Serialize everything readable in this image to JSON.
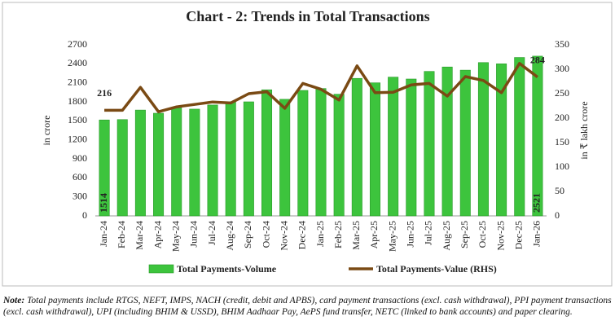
{
  "chart_data": {
    "type": "bar-line",
    "title": "Chart - 2: Trends in Total Transactions",
    "y_label": "in crore",
    "y2_label": "in ₹ lakh crore",
    "categories": [
      "Jan-24",
      "Feb-24",
      "Mar-24",
      "Apr-24",
      "May-24",
      "Jun-24",
      "Jul-24",
      "Aug-24",
      "Sep-24",
      "Oct-24",
      "Nov-24",
      "Dec-24",
      "Jan-25",
      "Feb-25",
      "Mar-25",
      "Apr-25",
      "May-25",
      "Jun-25",
      "Jul-25",
      "Aug-25",
      "Sep-25",
      "Oct-25",
      "Nov-25",
      "Dec-25",
      "Jan-26"
    ],
    "series": [
      {
        "name": "Total Payments-Volume",
        "type": "bar",
        "color": "#3dc43d",
        "values": [
          1514,
          1520,
          1670,
          1620,
          1705,
          1685,
          1750,
          1800,
          1800,
          1990,
          1840,
          1980,
          2010,
          1920,
          2170,
          2100,
          2190,
          2160,
          2280,
          2350,
          2300,
          2420,
          2400,
          2500,
          2521
        ]
      },
      {
        "name": "Total Payments-Value (RHS)",
        "type": "line",
        "axis": "y2",
        "color": "#7a4a14",
        "values": [
          216,
          216,
          263,
          213,
          223,
          228,
          233,
          231,
          250,
          254,
          220,
          271,
          259,
          237,
          307,
          252,
          253,
          268,
          271,
          245,
          285,
          277,
          252,
          312,
          284
        ]
      }
    ],
    "ylim": [
      0,
      2700
    ],
    "yticks": [
      0,
      300,
      600,
      900,
      1200,
      1500,
      1800,
      2100,
      2400,
      2700
    ],
    "y2lim": [
      0,
      350
    ],
    "y2ticks": [
      0,
      50,
      100,
      150,
      200,
      250,
      300,
      350
    ],
    "legend": "bottom"
  },
  "note_label": "Note:",
  "note": "Total payments include RTGS, NEFT, IMPS, NACH (credit, debit and APBS), card payment transactions (excl. cash withdrawal), PPI payment transactions (excl. cash withdrawal), UPI (including BHIM & USSD), BHIM Aadhaar Pay, AePS fund transfer, NETC (linked to bank accounts) and paper clearing."
}
